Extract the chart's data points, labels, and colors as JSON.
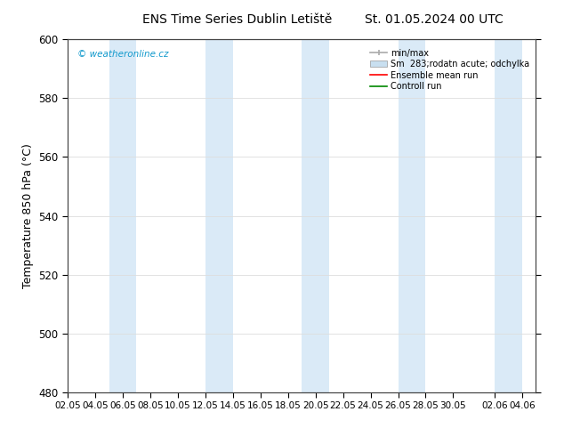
{
  "title_left": "ENS Time Series Dublin Letiště",
  "title_right": "St. 01.05.2024 00 UTC",
  "ylabel": "Temperature 850 hPa (°C)",
  "ylim": [
    480,
    600
  ],
  "yticks": [
    480,
    500,
    520,
    540,
    560,
    580,
    600
  ],
  "bg_color": "#ffffff",
  "plot_bg_color": "#ffffff",
  "band_color": "#daeaf7",
  "watermark": "© weatheronline.cz",
  "watermark_color": "#1199cc",
  "legend_entries": [
    "min/max",
    "Sm  283;rodatn acute; odchylka",
    "Ensemble mean run",
    "Controll run"
  ],
  "minmax_color": "#aaaaaa",
  "sm_color": "#c8dff0",
  "ensemble_color": "#ff0000",
  "control_color": "#008800",
  "x_start": "2024-05-02",
  "x_end": "2024-06-04",
  "shade_days": [
    "2024-05-05",
    "2024-05-06",
    "2024-05-12",
    "2024-05-13",
    "2024-05-19",
    "2024-05-20",
    "2024-05-26",
    "2024-05-27",
    "2024-06-02",
    "2024-06-03"
  ],
  "tick_dates": [
    "2024-05-02",
    "2024-05-04",
    "2024-05-06",
    "2024-05-08",
    "2024-05-10",
    "2024-05-12",
    "2024-05-14",
    "2024-05-16",
    "2024-05-18",
    "2024-05-20",
    "2024-05-22",
    "2024-05-24",
    "2024-05-26",
    "2024-05-28",
    "2024-05-30",
    "2024-06-02",
    "2024-06-04"
  ],
  "tick_labels": [
    "02.05",
    "04.05",
    "06.05",
    "08.05",
    "10.05",
    "12.05",
    "14.05",
    "16.05",
    "18.05",
    "20.05",
    "22.05",
    "24.05",
    "26.05",
    "28.05",
    "30.05",
    "02.06",
    "04.06"
  ]
}
